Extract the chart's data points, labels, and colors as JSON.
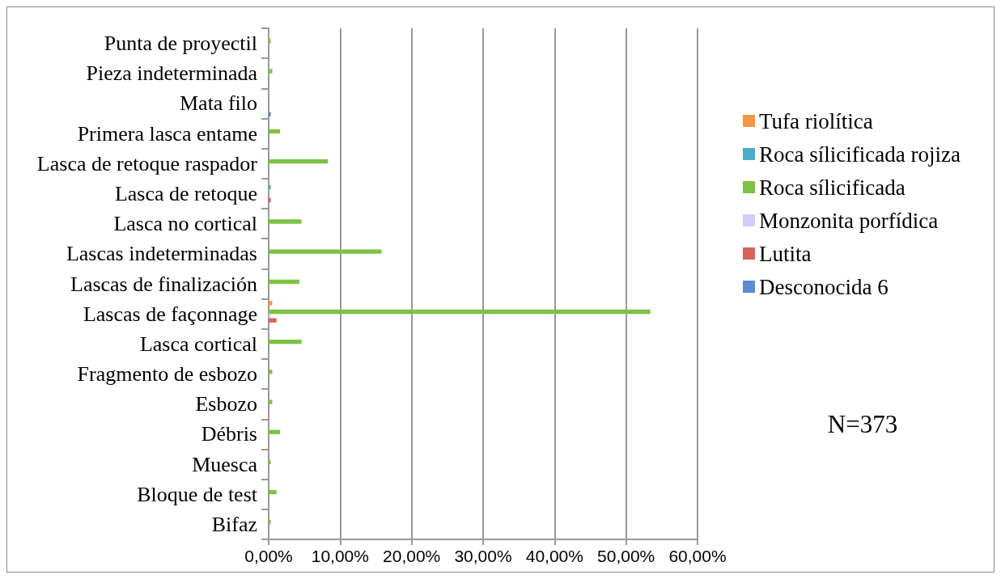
{
  "chart_data": {
    "type": "bar",
    "orientation": "horizontal",
    "categories": [
      "Punta de proyectil",
      "Pieza indeterminada",
      "Mata filo",
      "Primera lasca entame",
      "Lasca de retoque raspador",
      "Lasca de retoque",
      "Lasca no cortical",
      "Lascas indeterminadas",
      "Lascas de finalización",
      "Lascas de façonnage",
      "Lasca cortical",
      "Fragmento de esbozo",
      "Esbozo",
      "Débris",
      "Muesca",
      "Bloque de test",
      "Bifaz"
    ],
    "series": [
      {
        "name": "Tufa riolítica",
        "color": "#f79646",
        "values": [
          null,
          null,
          null,
          null,
          null,
          null,
          null,
          null,
          null,
          0.5,
          null,
          null,
          null,
          null,
          null,
          null,
          null
        ]
      },
      {
        "name": "Roca sílicificada rojiza",
        "color": "#4bacc6",
        "values": [
          null,
          null,
          null,
          null,
          null,
          0.3,
          null,
          null,
          null,
          null,
          null,
          null,
          null,
          null,
          null,
          null,
          null
        ]
      },
      {
        "name": "Roca sílicificada",
        "color": "#7dc243",
        "values": [
          0.3,
          0.5,
          null,
          1.6,
          8.3,
          null,
          4.6,
          15.8,
          4.3,
          53.4,
          4.6,
          0.5,
          0.5,
          1.6,
          0.3,
          1.1,
          0.3
        ]
      },
      {
        "name": "Monzonita porfídica",
        "color": "#d6ccf7",
        "values": [
          null,
          null,
          null,
          null,
          null,
          null,
          null,
          null,
          null,
          0.3,
          null,
          null,
          null,
          null,
          null,
          null,
          null
        ]
      },
      {
        "name": "Lutita",
        "color": "#d9605c",
        "values": [
          null,
          null,
          null,
          null,
          null,
          0.3,
          null,
          null,
          null,
          1.1,
          null,
          null,
          null,
          null,
          null,
          null,
          null
        ]
      },
      {
        "name": "Desconocida 6",
        "color": "#5b8bd0",
        "values": [
          null,
          null,
          0.3,
          null,
          null,
          null,
          null,
          null,
          null,
          null,
          null,
          null,
          null,
          null,
          null,
          null,
          null
        ]
      }
    ],
    "xlim": [
      0,
      60
    ],
    "xticks": [
      {
        "value": 0,
        "label": "0,00%"
      },
      {
        "value": 10,
        "label": "10,00%"
      },
      {
        "value": 20,
        "label": "20,00%"
      },
      {
        "value": 30,
        "label": "30,00%"
      },
      {
        "value": 40,
        "label": "40,00%"
      },
      {
        "value": 50,
        "label": "50,00%"
      },
      {
        "value": 60,
        "label": "60,00%"
      }
    ],
    "grid": "x",
    "legend": "right",
    "annotations": [
      "N=373"
    ]
  }
}
